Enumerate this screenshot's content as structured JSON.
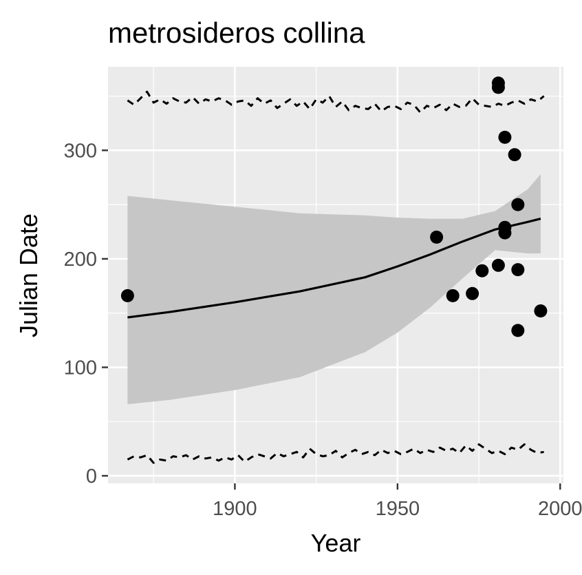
{
  "chart_data": {
    "type": "scatter",
    "title": "metrosideros collina",
    "xlabel": "Year",
    "ylabel": "Julian Date",
    "xlim": [
      1861,
      2001
    ],
    "ylim": [
      -7,
      377
    ],
    "x_ticks": [
      1900,
      1950,
      2000
    ],
    "x_tick_labels": [
      "1900",
      "1950",
      "2000"
    ],
    "y_ticks": [
      0,
      100,
      200,
      300
    ],
    "y_tick_labels": [
      "0",
      "100",
      "200",
      "300"
    ],
    "grid": true,
    "background": "#ebebeb",
    "grid_color": "#ffffff",
    "ribbon_color": "#c6c6c6",
    "point_color": "#000000",
    "line_color": "#000000",
    "points": [
      {
        "x": 1867,
        "y": 166
      },
      {
        "x": 1962,
        "y": 220
      },
      {
        "x": 1967,
        "y": 166
      },
      {
        "x": 1973,
        "y": 168
      },
      {
        "x": 1976,
        "y": 189
      },
      {
        "x": 1981,
        "y": 194
      },
      {
        "x": 1981,
        "y": 358
      },
      {
        "x": 1981,
        "y": 362
      },
      {
        "x": 1983,
        "y": 312
      },
      {
        "x": 1983,
        "y": 229
      },
      {
        "x": 1983,
        "y": 224
      },
      {
        "x": 1986,
        "y": 296
      },
      {
        "x": 1987,
        "y": 250
      },
      {
        "x": 1987,
        "y": 190
      },
      {
        "x": 1987,
        "y": 134
      },
      {
        "x": 1994,
        "y": 152
      }
    ],
    "fit": {
      "x": [
        1867,
        1880,
        1900,
        1920,
        1940,
        1950,
        1960,
        1970,
        1980,
        1990,
        1994
      ],
      "y": [
        146,
        151,
        160,
        170,
        183,
        193,
        204,
        216,
        227,
        234,
        237
      ],
      "lower": [
        66,
        70,
        79,
        91,
        114,
        132,
        155,
        182,
        208,
        205,
        205
      ],
      "upper": [
        258,
        254,
        248,
        242,
        240,
        238,
        237,
        237,
        244,
        264,
        278
      ]
    },
    "upper_dashed_series": {
      "x": [
        1867,
        1869,
        1871,
        1873,
        1875,
        1877,
        1879,
        1881,
        1883,
        1885,
        1887,
        1889,
        1891,
        1893,
        1895,
        1897,
        1899,
        1901,
        1903,
        1905,
        1907,
        1909,
        1911,
        1913,
        1915,
        1917,
        1919,
        1921,
        1923,
        1925,
        1927,
        1929,
        1931,
        1933,
        1935,
        1937,
        1939,
        1941,
        1943,
        1945,
        1947,
        1949,
        1951,
        1953,
        1955,
        1957,
        1959,
        1961,
        1963,
        1965,
        1967,
        1969,
        1971,
        1973,
        1975,
        1977,
        1979,
        1981,
        1983,
        1985,
        1987,
        1989,
        1991,
        1993,
        1995
      ],
      "y": [
        346,
        342,
        348,
        354,
        344,
        347,
        343,
        348,
        345,
        344,
        349,
        343,
        347,
        345,
        348,
        346,
        342,
        345,
        346,
        341,
        348,
        343,
        346,
        339,
        343,
        347,
        341,
        345,
        338,
        347,
        344,
        350,
        340,
        345,
        337,
        341,
        339,
        338,
        343,
        336,
        340,
        341,
        338,
        344,
        342,
        335,
        341,
        339,
        342,
        337,
        343,
        340,
        341,
        348,
        342,
        341,
        340,
        343,
        341,
        344,
        346,
        343,
        347,
        345,
        350
      ]
    },
    "lower_dashed_series": {
      "x": [
        1867,
        1869,
        1871,
        1873,
        1875,
        1877,
        1879,
        1881,
        1883,
        1885,
        1887,
        1889,
        1891,
        1893,
        1895,
        1897,
        1899,
        1901,
        1903,
        1905,
        1907,
        1909,
        1911,
        1913,
        1915,
        1917,
        1919,
        1921,
        1923,
        1925,
        1927,
        1929,
        1931,
        1933,
        1935,
        1937,
        1939,
        1941,
        1943,
        1945,
        1947,
        1949,
        1951,
        1953,
        1955,
        1957,
        1959,
        1961,
        1963,
        1965,
        1967,
        1969,
        1971,
        1973,
        1975,
        1977,
        1979,
        1981,
        1983,
        1985,
        1987,
        1989,
        1991,
        1993,
        1995
      ],
      "y": [
        15,
        18,
        17,
        19,
        12,
        15,
        14,
        18,
        17,
        19,
        15,
        18,
        16,
        17,
        14,
        17,
        15,
        19,
        13,
        17,
        20,
        18,
        16,
        21,
        18,
        20,
        22,
        17,
        25,
        20,
        18,
        19,
        23,
        17,
        21,
        24,
        20,
        22,
        19,
        24,
        21,
        23,
        20,
        22,
        25,
        21,
        24,
        22,
        26,
        23,
        25,
        21,
        28,
        23,
        29,
        25,
        21,
        23,
        20,
        26,
        24,
        29,
        24,
        21,
        22
      ]
    }
  }
}
